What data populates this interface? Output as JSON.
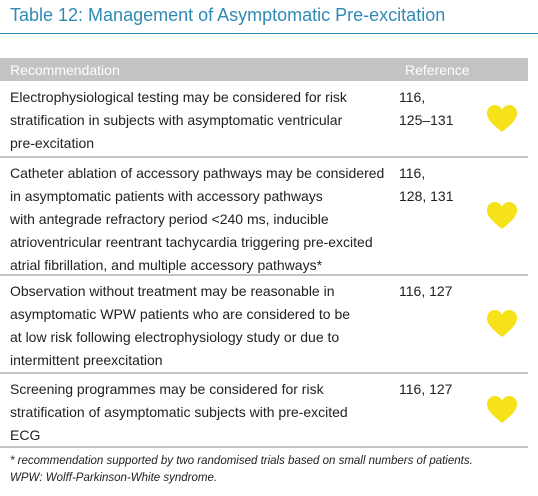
{
  "title": "Table 12: Management of Asymptomatic Pre-excitation",
  "table": {
    "header": [
      "Recommendation",
      "Reference"
    ],
    "rows": [
      {
        "recommendation": [
          "Electrophysiological testing may be considered for risk",
          "stratification in subjects with asymptomatic ventricular",
          "pre-excitation"
        ],
        "reference": [
          "116,",
          "125–131"
        ]
      },
      {
        "recommendation": [
          "Catheter ablation of accessory pathways may be considered",
          "in asymptomatic patients with accessory pathways",
          "with antegrade refractory period <240 ms, inducible",
          "atrioventricular reentrant tachycardia triggering pre-excited",
          "atrial fibrillation, and multiple accessory pathways*"
        ],
        "reference": [
          "116,",
          "128, 131"
        ]
      },
      {
        "recommendation": [
          "Observation without treatment may be reasonable in",
          "asymptomatic WPW patients who are considered to be",
          "at low risk following electrophysiology study or due to",
          "intermittent preexcitation"
        ],
        "reference": [
          "116, 127"
        ]
      },
      {
        "recommendation": [
          "Screening programmes may be considered for risk",
          "stratification of asymptomatic subjects with pre-excited",
          "ECG"
        ],
        "reference": [
          "116, 127"
        ]
      }
    ]
  },
  "footnotes": [
    "* recommendation supported by two randomised trials based on small numbers of patients.",
    "WPW: Wolff-Parkinson-White syndrome."
  ]
}
